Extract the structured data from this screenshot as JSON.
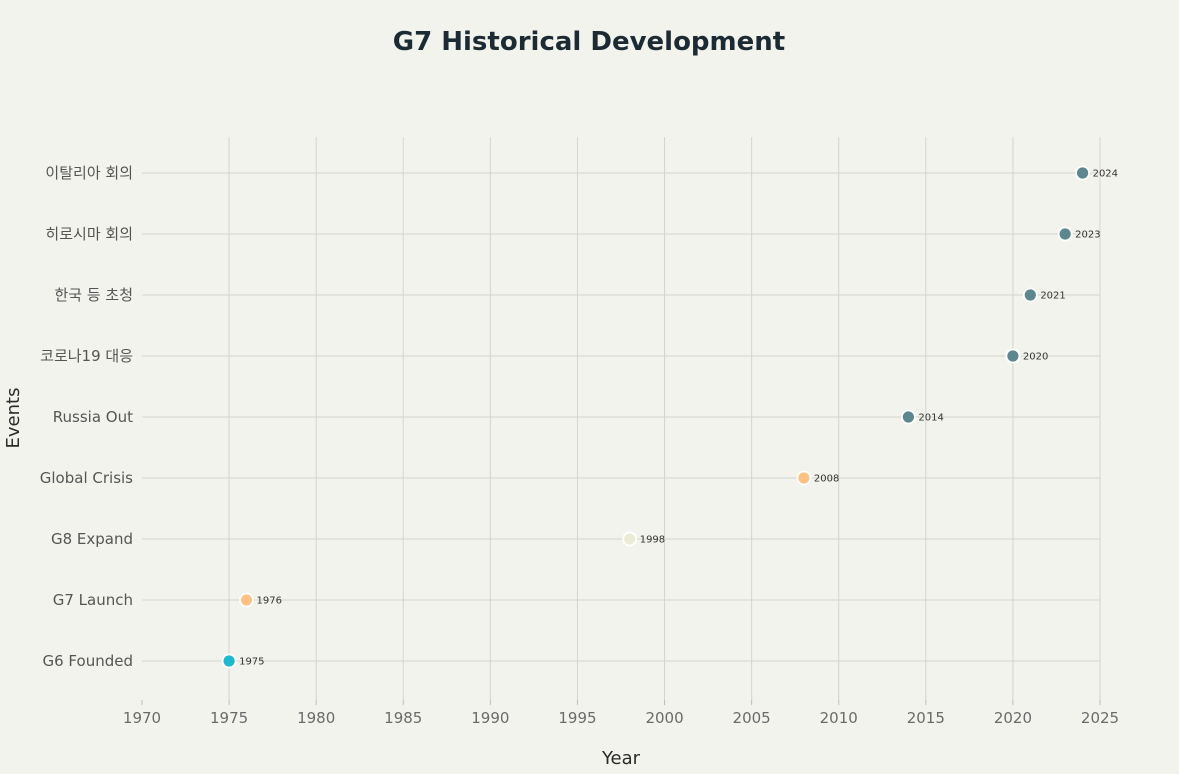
{
  "chart_data": {
    "type": "scatter",
    "title": "G7 Historical Development",
    "xlabel": "Year",
    "ylabel": "Events",
    "xlim": [
      1970,
      2025
    ],
    "xticks": [
      1970,
      1975,
      1980,
      1985,
      1990,
      1995,
      2000,
      2005,
      2010,
      2015,
      2020,
      2025
    ],
    "grid": true,
    "categories": [
      "G6 Founded",
      "G7 Launch",
      "G8 Expand",
      "Global Crisis",
      "Russia Out",
      "코로나19 대응",
      "한국 등 초청",
      "히로시마 회의",
      "이탈리아 회의"
    ],
    "points": [
      {
        "event": "G6 Founded",
        "x": 1975,
        "label": "1975",
        "color": "#1fb8cd"
      },
      {
        "event": "G7 Launch",
        "x": 1976,
        "label": "1976",
        "color": "#ffc185"
      },
      {
        "event": "G8 Expand",
        "x": 1998,
        "label": "1998",
        "color": "#ecebd5"
      },
      {
        "event": "Global Crisis",
        "x": 2008,
        "label": "2008",
        "color": "#ffc185"
      },
      {
        "event": "Russia Out",
        "x": 2014,
        "label": "2014",
        "color": "#5d878f"
      },
      {
        "event": "코로나19 대응",
        "x": 2020,
        "label": "2020",
        "color": "#5d878f"
      },
      {
        "event": "한국 등 초청",
        "x": 2021,
        "label": "2021",
        "color": "#5d878f"
      },
      {
        "event": "히로시마 회의",
        "x": 2023,
        "label": "2023",
        "color": "#5d878f"
      },
      {
        "event": "이탈리아 회의",
        "x": 2024,
        "label": "2024",
        "color": "#5d878f"
      }
    ]
  }
}
